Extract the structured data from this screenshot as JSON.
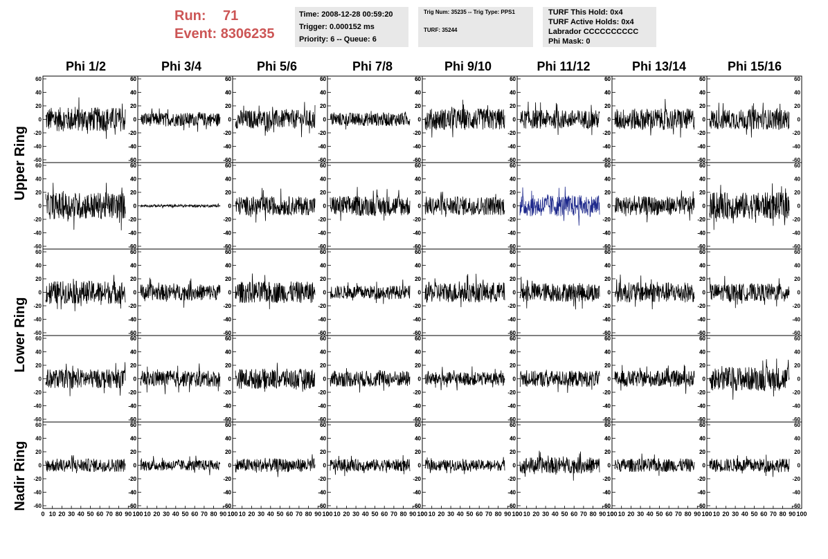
{
  "header": {
    "run_label": "Run:",
    "run_value": "71",
    "event_label": "Event:",
    "event_value": "8306235"
  },
  "info_box_1": {
    "time": "Time: 2008-12-28 00:59:20",
    "trigger": "Trigger: 0.000152 ms",
    "priority": "Priority: 6 -- Queue: 6"
  },
  "info_box_2": {
    "trig": "Trig Num: 35235 -- Trig Type: PPS1",
    "turf": "TURF: 35244"
  },
  "info_box_3": {
    "this_hold": "TURF This Hold: 0x4",
    "active_holds": "TURF Active Holds: 0x4",
    "labrador": "Labrador CCCCCCCCCC",
    "phi_mask": "Phi Mask: 0"
  },
  "columns": [
    "Phi 1/2",
    "Phi 3/4",
    "Phi 5/6",
    "Phi 7/8",
    "Phi 9/10",
    "Phi 11/12",
    "Phi 13/14",
    "Phi 15/16"
  ],
  "ring_labels": [
    "Upper Ring",
    "Lower Ring",
    "Nadir Ring"
  ],
  "colors": {
    "trace": "#000000",
    "highlight_trace": "#1f2a8c",
    "title_red": "#cc5555",
    "info_bg": "#e8e8e8"
  },
  "chart_data": {
    "type": "line",
    "rows": 5,
    "cols": 8,
    "ylim": [
      -60,
      60
    ],
    "y_ticks_left": [
      "60",
      "40",
      "20",
      "0",
      "-20",
      "-40",
      "-60"
    ],
    "y_ticks_right": [
      "60",
      "40",
      "20",
      "0",
      "-20",
      "-40",
      "-60"
    ],
    "xlim": [
      0,
      100
    ],
    "x_ticks": [
      "0",
      "10",
      "20",
      "30",
      "40",
      "50",
      "60",
      "70",
      "80",
      "90",
      "100"
    ],
    "highlight_panel": {
      "row": 1,
      "col": 5
    },
    "amplitudes": [
      [
        18,
        10,
        14,
        10,
        16,
        14,
        16,
        15
      ],
      [
        20,
        2,
        14,
        15,
        14,
        16,
        14,
        20
      ],
      [
        17,
        12,
        16,
        10,
        15,
        14,
        15,
        13
      ],
      [
        14,
        12,
        15,
        12,
        10,
        12,
        12,
        18
      ],
      [
        10,
        8,
        10,
        9,
        8,
        12,
        10,
        10
      ]
    ]
  }
}
